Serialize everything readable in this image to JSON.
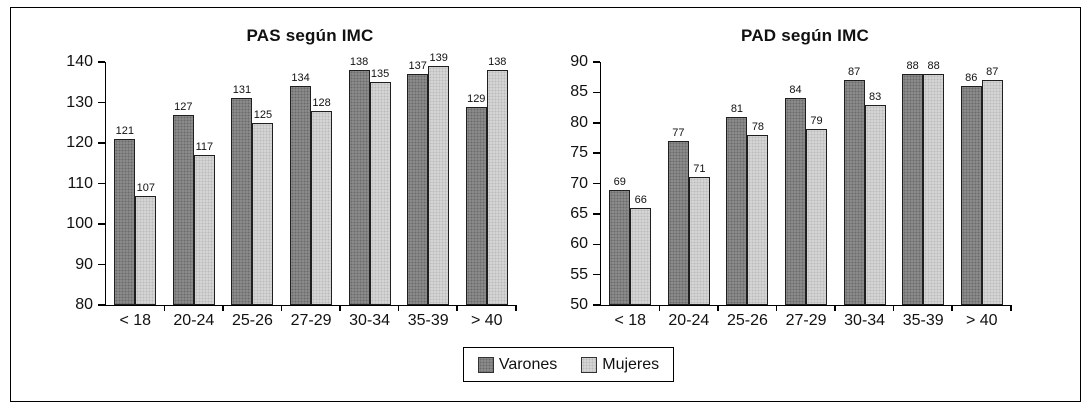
{
  "figure": {
    "background": "#ffffff",
    "border_color": "#000000"
  },
  "legend": {
    "items": [
      {
        "label": "Varones",
        "color": "#919191"
      },
      {
        "label": "Mujeres",
        "color": "#d9d9d9"
      }
    ]
  },
  "chart_data": [
    {
      "type": "bar",
      "title": "PAS según IMC",
      "categories": [
        "< 18",
        "20-24",
        "25-26",
        "27-29",
        "30-34",
        "35-39",
        "> 40"
      ],
      "series": [
        {
          "name": "Varones",
          "color": "#919191",
          "values": [
            121,
            127,
            131,
            134,
            138,
            137,
            129
          ]
        },
        {
          "name": "Mujeres",
          "color": "#d9d9d9",
          "values": [
            107,
            117,
            125,
            128,
            135,
            139,
            138
          ]
        }
      ],
      "ylim": [
        80,
        140
      ],
      "ytick_step": 10,
      "xlabel": "",
      "ylabel": "",
      "grid": false,
      "value_labels": true,
      "legend_position": "bottom-center"
    },
    {
      "type": "bar",
      "title": "PAD según IMC",
      "categories": [
        "< 18",
        "20-24",
        "25-26",
        "27-29",
        "30-34",
        "35-39",
        "> 40"
      ],
      "series": [
        {
          "name": "Varones",
          "color": "#919191",
          "values": [
            69,
            77,
            81,
            84,
            87,
            88,
            86
          ]
        },
        {
          "name": "Mujeres",
          "color": "#d9d9d9",
          "values": [
            66,
            71,
            78,
            79,
            83,
            88,
            87
          ]
        }
      ],
      "ylim": [
        50,
        90
      ],
      "ytick_step": 5,
      "xlabel": "",
      "ylabel": "",
      "grid": false,
      "value_labels": true,
      "legend_position": "bottom-center"
    }
  ]
}
